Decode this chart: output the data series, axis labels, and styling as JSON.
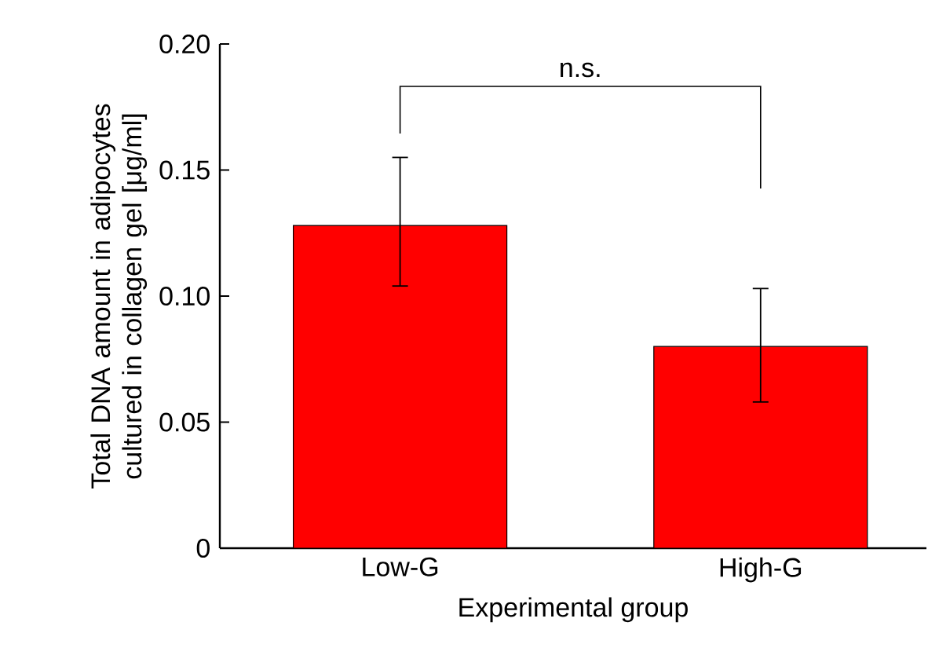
{
  "chart_data": {
    "type": "bar",
    "xlabel": "Experimental group",
    "ylabel": "Total DNA amount in adipocytes cultured in collagen gel [μg/ml]",
    "categories": [
      "Low-G",
      "High-G"
    ],
    "values": [
      0.128,
      0.08
    ],
    "color": "#ff0000",
    "errors": [
      [
        0.104,
        0.155
      ],
      [
        0.058,
        0.103
      ]
    ],
    "ylim": [
      0,
      0.2
    ],
    "yticks": [
      0,
      {
        "value": 0.05,
        "label": "0.05"
      },
      {
        "value": 0.1,
        "label": "0.10"
      },
      {
        "value": 0.15,
        "label": "0.15"
      },
      {
        "value": 0.2,
        "label": "0.20"
      }
    ],
    "annotations": [
      "n.s."
    ]
  }
}
